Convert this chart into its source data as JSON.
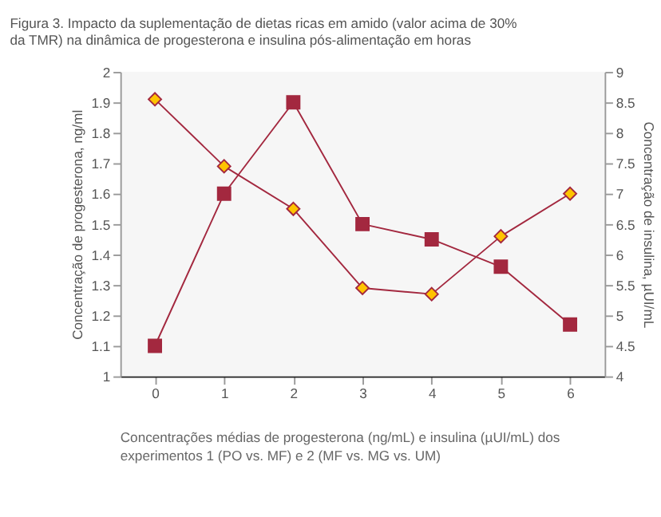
{
  "chart_data": {
    "type": "line",
    "title": "Figura 3. Impacto da suplementação de dietas ricas em amido (valor acima de 30% da TMR) na dinâmica de progesterona e insulina pós-alimentação em horas",
    "annotations": [
      "Concentrações médias de progesterona (ng/mL) e insulina (µUI/mL) dos experimentos 1 (PO vs. MF) e 2 (MF vs. MG vs. UM)"
    ],
    "ylabel": "Concentração de progesterona, ng/ml",
    "y2label": "Concentração de insulina, µUI/mL",
    "categories": [
      "0",
      "1",
      "2",
      "3",
      "4",
      "5",
      "6"
    ],
    "series": [
      {
        "color": "#ffc400",
        "marker": "diamond",
        "values": [
          1.91,
          1.69,
          1.55,
          1.29,
          1.27,
          1.46,
          1.6
        ]
      },
      {
        "color": "#a3283f",
        "marker": "square",
        "axis": "y2",
        "values": [
          4.5,
          7.0,
          8.5,
          6.5,
          6.25,
          5.8,
          4.85
        ]
      }
    ],
    "ylim": [
      1,
      2
    ],
    "yticks": [
      1,
      1.1,
      1.2,
      1.3,
      1.4,
      1.5,
      1.6,
      1.7,
      1.8,
      1.9,
      2
    ],
    "y2lim": [
      4,
      9
    ],
    "y2ticks": [
      4,
      4.5,
      5,
      5.5,
      6,
      6.5,
      7,
      7.5,
      8,
      8.5,
      9
    ],
    "grid": false,
    "line_style": "solid"
  }
}
